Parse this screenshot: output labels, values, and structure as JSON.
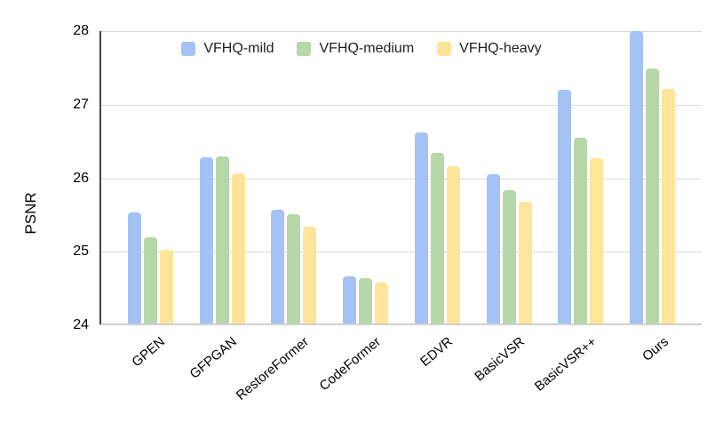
{
  "chart_data": {
    "type": "bar",
    "title": "",
    "xlabel": "",
    "ylabel": "PSNR",
    "ylim": [
      24,
      28
    ],
    "yticks": [
      24,
      25,
      26,
      27,
      28
    ],
    "grid": true,
    "legend_position": "top-center",
    "background_color": "#ffffff",
    "gridline_color": "#d9d9d9",
    "categories": [
      "GPEN",
      "GFPGAN",
      "RestoreFormer",
      "CodeFormer",
      "EDVR",
      "BasicVSR",
      "BasicVSR++",
      "Ours"
    ],
    "series": [
      {
        "name": "VFHQ-mild",
        "color": "#a4c2f4",
        "values": [
          25.52,
          26.27,
          25.56,
          24.65,
          26.61,
          26.04,
          27.2,
          28.0
        ]
      },
      {
        "name": "VFHQ-medium",
        "color": "#b6d7a8",
        "values": [
          25.18,
          26.28,
          25.5,
          24.62,
          26.33,
          25.82,
          26.54,
          27.49
        ]
      },
      {
        "name": "VFHQ-heavy",
        "color": "#ffe599",
        "values": [
          25.01,
          26.06,
          25.32,
          24.56,
          26.15,
          25.66,
          26.26,
          27.21
        ]
      }
    ]
  }
}
